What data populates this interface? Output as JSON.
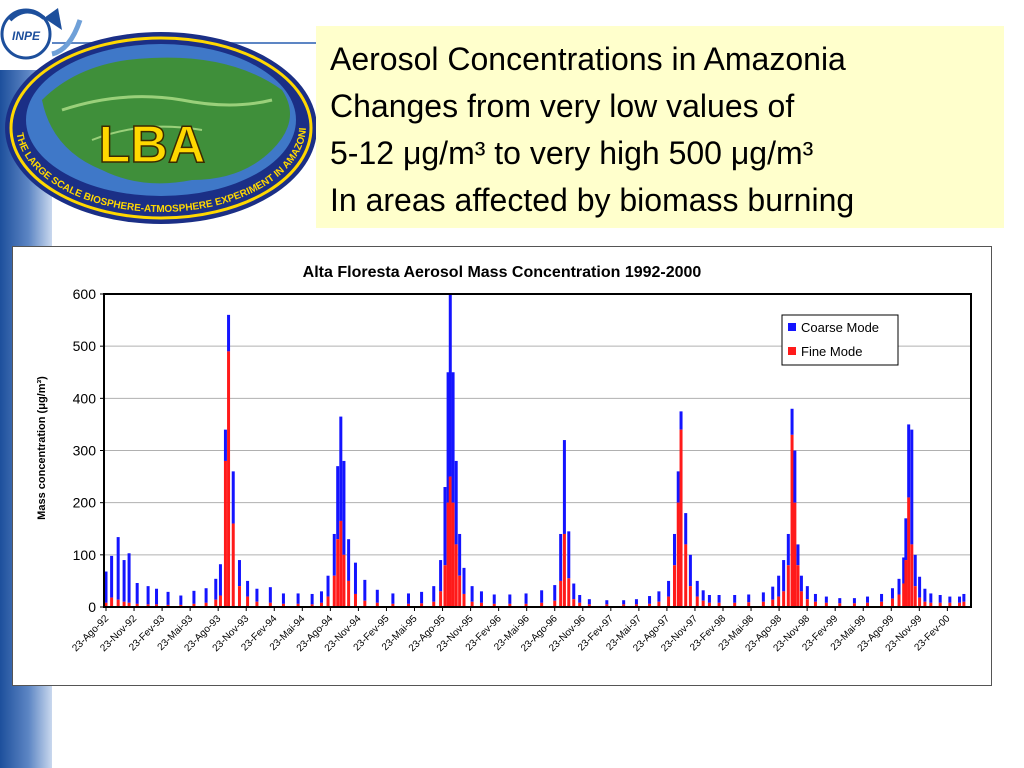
{
  "header": {
    "lines": [
      "Aerosol Concentrations in Amazonia",
      "Changes from very low values of",
      "5-12 μg/m³ to very high 500 μg/m³",
      "In areas affected by biomass burning"
    ]
  },
  "logos": {
    "inpe_text": "INPE",
    "lba_text": "LBA",
    "lba_ring_text": "THE LARGE SCALE BIOSPHERE-ATMOSPHERE EXPERIMENT IN AMAZONIA - LBA"
  },
  "colors": {
    "coarse": "#1414ff",
    "fine": "#ff1a1a",
    "highlight": "#ffffcc",
    "accent": "#1d4f9c"
  },
  "chart_data": {
    "type": "bar",
    "title": "Alta Floresta Aerosol Mass Concentration 1992-2000",
    "xlabel": "",
    "ylabel": "Mass concentration (μg/m³)",
    "ylim": [
      0,
      600
    ],
    "yticks": [
      0,
      100,
      200,
      300,
      400,
      500,
      600
    ],
    "grid": true,
    "stacked": true,
    "legend_position": "top-right",
    "x_tick_labels": [
      "23-Ago-92",
      "23-Nov-92",
      "23-Fev-93",
      "23-Mai-93",
      "23-Ago-93",
      "23-Nov-93",
      "23-Fev-94",
      "23-Mai-94",
      "23-Ago-94",
      "23-Nov-94",
      "23-Fev-95",
      "23-Mai-95",
      "23-Ago-95",
      "23-Nov-95",
      "23-Fev-96",
      "23-Mai-96",
      "23-Ago-96",
      "23-Nov-96",
      "23-Fev-97",
      "23-Mai-97",
      "23-Ago-97",
      "23-Nov-97",
      "23-Fev-98",
      "23-Mai-98",
      "23-Ago-98",
      "23-Nov-98",
      "23-Fev-99",
      "23-Mai-99",
      "23-Ago-99",
      "23-Nov-99",
      "23-Fev-00"
    ],
    "x": [
      "1992-08-23",
      "1992-09-10",
      "1992-10-01",
      "1992-10-20",
      "1992-11-05",
      "1992-12-01",
      "1993-01-05",
      "1993-02-01",
      "1993-03-10",
      "1993-04-20",
      "1993-06-01",
      "1993-07-10",
      "1993-08-10",
      "1993-08-25",
      "1993-09-10",
      "1993-09-20",
      "1993-10-05",
      "1993-10-25",
      "1993-11-20",
      "1993-12-20",
      "1994-02-01",
      "1994-03-15",
      "1994-05-01",
      "1994-06-15",
      "1994-07-15",
      "1994-08-05",
      "1994-08-25",
      "1994-09-05",
      "1994-09-15",
      "1994-09-25",
      "1994-10-10",
      "1994-11-01",
      "1994-12-01",
      "1995-01-10",
      "1995-03-01",
      "1995-04-20",
      "1995-06-01",
      "1995-07-10",
      "1995-08-01",
      "1995-08-15",
      "1995-08-25",
      "1995-09-01",
      "1995-09-10",
      "1995-09-20",
      "1995-10-01",
      "1995-10-15",
      "1995-11-10",
      "1995-12-10",
      "1996-01-20",
      "1996-03-10",
      "1996-05-01",
      "1996-06-20",
      "1996-08-01",
      "1996-08-20",
      "1996-09-01",
      "1996-09-15",
      "1996-10-01",
      "1996-10-20",
      "1996-11-20",
      "1997-01-15",
      "1997-03-10",
      "1997-04-20",
      "1997-06-01",
      "1997-07-01",
      "1997-08-01",
      "1997-08-20",
      "1997-09-01",
      "1997-09-10",
      "1997-09-25",
      "1997-10-10",
      "1997-11-01",
      "1997-11-20",
      "1997-12-10",
      "1998-01-10",
      "1998-03-01",
      "1998-04-15",
      "1998-06-01",
      "1998-07-01",
      "1998-07-20",
      "1998-08-05",
      "1998-08-20",
      "1998-09-01",
      "1998-09-10",
      "1998-09-20",
      "1998-10-01",
      "1998-10-20",
      "1998-11-15",
      "1998-12-20",
      "1999-02-01",
      "1999-03-20",
      "1999-05-01",
      "1999-06-15",
      "1999-07-20",
      "1999-08-10",
      "1999-08-25",
      "1999-09-01",
      "1999-09-10",
      "1999-09-20",
      "1999-10-01",
      "1999-10-15",
      "1999-11-01",
      "1999-11-20",
      "1999-12-20",
      "2000-01-20",
      "2000-02-20",
      "2000-03-05"
    ],
    "series": [
      {
        "name": "Fine Mode",
        "values": [
          8,
          18,
          14,
          10,
          8,
          6,
          5,
          5,
          4,
          4,
          6,
          8,
          14,
          22,
          280,
          490,
          160,
          40,
          20,
          10,
          8,
          6,
          6,
          5,
          8,
          20,
          60,
          130,
          165,
          100,
          50,
          25,
          12,
          8,
          6,
          6,
          7,
          10,
          30,
          80,
          200,
          250,
          200,
          120,
          60,
          25,
          10,
          8,
          6,
          6,
          6,
          8,
          12,
          50,
          140,
          55,
          15,
          8,
          5,
          5,
          5,
          5,
          6,
          10,
          20,
          80,
          200,
          340,
          120,
          40,
          20,
          12,
          8,
          8,
          8,
          9,
          10,
          14,
          20,
          30,
          80,
          330,
          200,
          80,
          30,
          15,
          10,
          8,
          7,
          7,
          8,
          10,
          16,
          24,
          45,
          90,
          210,
          120,
          40,
          18,
          10,
          8,
          8,
          8,
          8,
          10
        ]
      },
      {
        "name": "Coarse Mode",
        "values": [
          60,
          80,
          120,
          80,
          95,
          40,
          35,
          30,
          25,
          18,
          25,
          28,
          40,
          60,
          60,
          70,
          100,
          50,
          30,
          25,
          30,
          20,
          20,
          20,
          22,
          40,
          80,
          140,
          200,
          180,
          80,
          60,
          40,
          25,
          20,
          20,
          22,
          30,
          60,
          150,
          250,
          350,
          250,
          160,
          80,
          50,
          30,
          22,
          18,
          18,
          20,
          24,
          30,
          90,
          180,
          90,
          30,
          15,
          10,
          8,
          8,
          10,
          15,
          20,
          30,
          60,
          60,
          35,
          60,
          60,
          30,
          20,
          15,
          15,
          15,
          15,
          18,
          25,
          40,
          60,
          60,
          50,
          100,
          40,
          30,
          25,
          15,
          12,
          10,
          10,
          12,
          15,
          20,
          30,
          50,
          80,
          140,
          220,
          60,
          40,
          25,
          18,
          15,
          12,
          12,
          15
        ]
      }
    ],
    "legend": [
      "Coarse Mode",
      "Fine Mode"
    ]
  }
}
